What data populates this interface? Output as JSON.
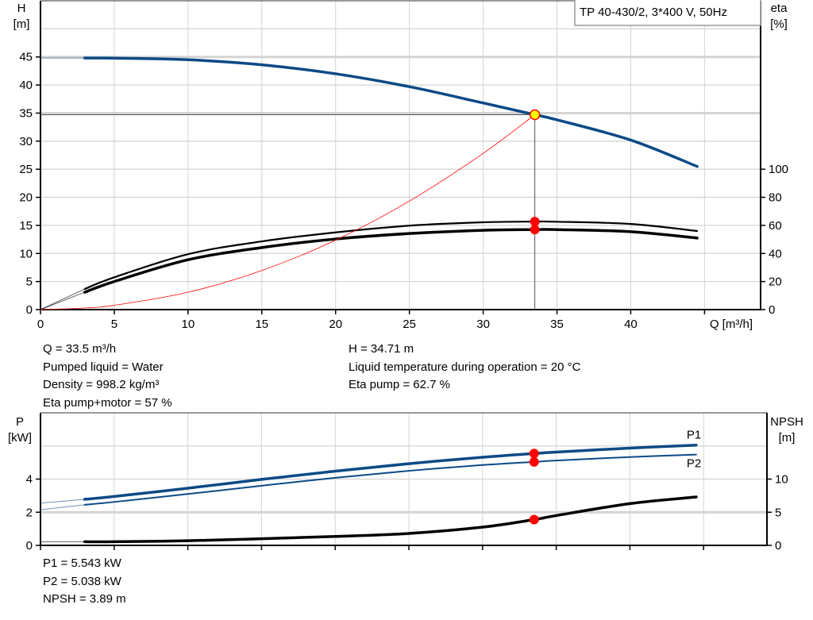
{
  "title_box": "TP 40-430/2, 3*400 V, 50Hz",
  "chart_data": [
    {
      "type": "line",
      "name": "head-efficiency",
      "xlabel": "Q [m³/h]",
      "ylabel_left": [
        "H",
        "[m]"
      ],
      "ylabel_right": [
        "eta",
        "[%]"
      ],
      "xlim": [
        0,
        48.8
      ],
      "ylim_left": [
        0,
        55
      ],
      "ylim_right": [
        0,
        220
      ],
      "x_ticks": [
        0,
        5,
        10,
        15,
        20,
        25,
        30,
        35,
        40
      ],
      "y_ticks_left": [
        0,
        5,
        10,
        15,
        20,
        25,
        30,
        35,
        40,
        45
      ],
      "y_ticks_right": [
        0,
        20,
        40,
        60,
        80,
        100
      ],
      "grid": true,
      "series": [
        {
          "id": "H",
          "axis": "left",
          "color": "#0b4a86",
          "width": 3.5,
          "x": [
            3,
            5,
            10,
            15,
            20,
            25,
            30,
            33.5,
            35,
            40,
            44.5
          ],
          "y": [
            44.8,
            44.78,
            44.5,
            43.6,
            42.0,
            39.7,
            36.8,
            34.71,
            33.8,
            30.2,
            25.5
          ],
          "ext": {
            "x": [
              0,
              3
            ],
            "y": [
              44.8,
              44.8
            ]
          }
        },
        {
          "id": "eta_pump",
          "axis": "right",
          "color": "#000000",
          "width": 2.2,
          "x": [
            3,
            5,
            10,
            15,
            20,
            25,
            30,
            33.5,
            35,
            40,
            44.5
          ],
          "y": [
            14.7,
            23,
            39.5,
            48.6,
            55,
            59.8,
            62.2,
            62.7,
            62.6,
            61,
            56
          ],
          "ext": {
            "x": [
              0,
              3
            ],
            "y": [
              0,
              14.7
            ]
          }
        },
        {
          "id": "eta_pump_motor",
          "axis": "right",
          "color": "#000000",
          "width": 3.5,
          "x": [
            3,
            5,
            10,
            15,
            20,
            25,
            30,
            33.5,
            35,
            40,
            44.5
          ],
          "y": [
            12.4,
            20,
            35.5,
            44.2,
            50.3,
            54.2,
            56.5,
            57,
            57,
            55.5,
            51
          ],
          "ext": {
            "x": [
              0,
              3
            ],
            "y": [
              0,
              12.4
            ]
          }
        },
        {
          "id": "system",
          "axis": "left",
          "color": "#ff0000",
          "width": 0.8,
          "x": [
            0,
            3,
            5,
            10,
            15,
            20,
            25,
            30,
            33.5
          ],
          "y": [
            0,
            0.28,
            0.77,
            3.09,
            6.96,
            12.37,
            19.33,
            27.83,
            34.71
          ]
        }
      ],
      "duty_point": {
        "Q": 33.5,
        "H": 34.71,
        "eta_pump": 62.7,
        "eta_pump_motor": 57
      }
    },
    {
      "type": "line",
      "name": "power-npsh",
      "ylabel_left": [
        "P",
        "[kW]"
      ],
      "ylabel_right": [
        "NPSH",
        "[m]"
      ],
      "xlim": [
        0,
        49.3
      ],
      "ylim_left": [
        0,
        8
      ],
      "ylim_right": [
        0,
        20
      ],
      "y_ticks_left": [
        0,
        2,
        4
      ],
      "y_ticks_right": [
        0,
        5,
        10
      ],
      "grid": true,
      "series": [
        {
          "id": "P1",
          "label": "P1",
          "axis": "left",
          "color": "#0b4a86",
          "width": 3.5,
          "x": [
            3,
            5,
            10,
            15,
            20,
            25,
            30,
            33.5,
            35,
            40,
            44.5
          ],
          "y": [
            2.78,
            2.95,
            3.45,
            3.98,
            4.48,
            4.93,
            5.32,
            5.543,
            5.63,
            5.87,
            6.05
          ],
          "ext": {
            "x": [
              0,
              3
            ],
            "y": [
              2.55,
              2.78
            ]
          }
        },
        {
          "id": "P2",
          "label": "P2",
          "axis": "left",
          "color": "#0b4a86",
          "width": 2,
          "x": [
            3,
            5,
            10,
            15,
            20,
            25,
            30,
            33.5,
            35,
            40,
            44.5
          ],
          "y": [
            2.45,
            2.62,
            3.1,
            3.6,
            4.08,
            4.5,
            4.85,
            5.038,
            5.12,
            5.33,
            5.48
          ],
          "ext": {
            "x": [
              0,
              3
            ],
            "y": [
              2.15,
              2.45
            ]
          }
        },
        {
          "id": "NPSH",
          "axis": "right",
          "color": "#000000",
          "width": 3.5,
          "x": [
            3,
            5,
            10,
            15,
            20,
            25,
            30,
            33.5,
            35,
            40,
            44.5
          ],
          "y": [
            0.55,
            0.55,
            0.7,
            1.0,
            1.35,
            1.8,
            2.75,
            3.89,
            4.5,
            6.3,
            7.3
          ],
          "ext": {
            "x": [
              0,
              3
            ],
            "y": [
              0.55,
              0.55
            ]
          }
        }
      ],
      "duty_point": {
        "P1": 5.543,
        "P2": 5.038,
        "NPSH": 3.89
      }
    }
  ],
  "info_top_left": [
    "Q = 33.5 m³/h",
    "Pumped liquid = Water",
    "Density = 998.2 kg/m³",
    "Eta pump+motor = 57 %"
  ],
  "info_top_right": [
    "H = 34.71 m",
    "Liquid temperature during operation = 20 °C",
    "Eta pump = 62.7 %"
  ],
  "info_bottom": [
    "P1 = 5.543 kW",
    "P2 = 5.038 kW",
    "NPSH = 3.89 m"
  ],
  "colors": {
    "grid": "#d4d4d4",
    "duty_marker": "#ff0000",
    "duty_point_fill": "#ffff00"
  }
}
